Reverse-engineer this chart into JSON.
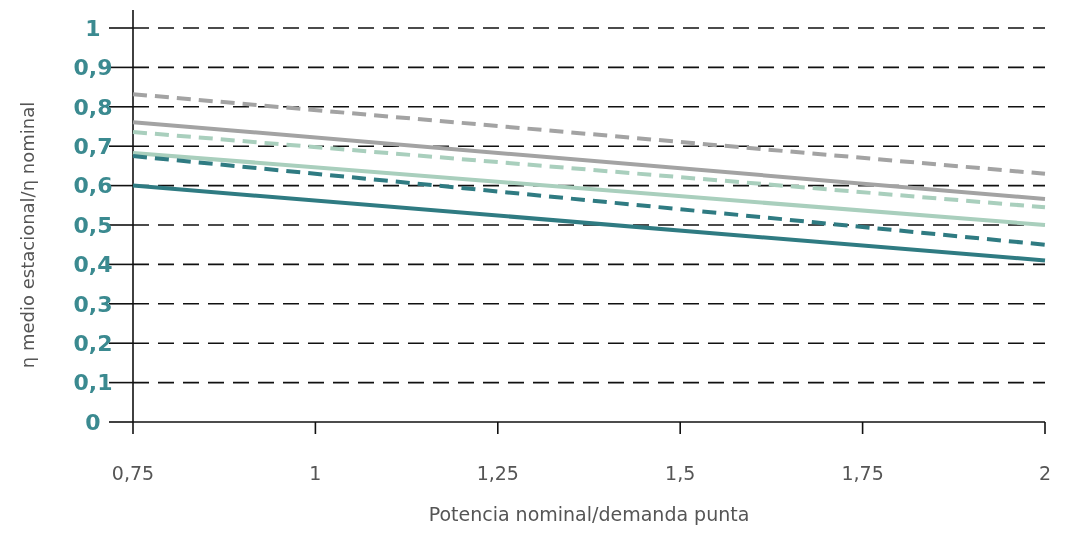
{
  "chart_data": {
    "type": "line",
    "xlabel": "Potencia nominal/demanda punta",
    "ylabel": "η medio estacional/η nominal",
    "x": [
      0.75,
      2
    ],
    "series": [
      {
        "color": "#a3a3a3",
        "values": [
          0.832,
          0.63
        ],
        "line_style": "dashed"
      },
      {
        "color": "#a3a3a3",
        "values": [
          0.761,
          0.566
        ],
        "line_style": "solid"
      },
      {
        "color": "#a9cfbd",
        "values": [
          0.736,
          0.545
        ],
        "line_style": "dashed"
      },
      {
        "color": "#a9cfbd",
        "values": [
          0.683,
          0.5
        ],
        "line_style": "solid"
      },
      {
        "color": "#2f7b82",
        "values": [
          0.675,
          0.45
        ],
        "line_style": "dashed"
      },
      {
        "color": "#2f7b82",
        "values": [
          0.6,
          0.41
        ],
        "line_style": "solid"
      }
    ],
    "xlim": [
      0.75,
      2
    ],
    "xticks": [
      {
        "value": 0.75,
        "label": "0,75"
      },
      1,
      {
        "value": 1.25,
        "label": "1,25"
      },
      {
        "value": 1.5,
        "label": "1,5"
      },
      {
        "value": 1.75,
        "label": "1,75"
      },
      2
    ],
    "ylim": [
      0,
      1
    ],
    "yticks": [
      0,
      {
        "value": 0.1,
        "label": "0,1"
      },
      {
        "value": 0.2,
        "label": "0,2"
      },
      {
        "value": 0.3,
        "label": "0,3"
      },
      {
        "value": 0.4,
        "label": "0,4"
      },
      {
        "value": 0.5,
        "label": "0,5"
      },
      {
        "value": 0.6,
        "label": "0,6"
      },
      {
        "value": 0.7,
        "label": "0,7"
      },
      {
        "value": 0.8,
        "label": "0,8"
      },
      {
        "value": 0.9,
        "label": "0,9"
      },
      1
    ],
    "grid": "y",
    "marker": "none"
  }
}
